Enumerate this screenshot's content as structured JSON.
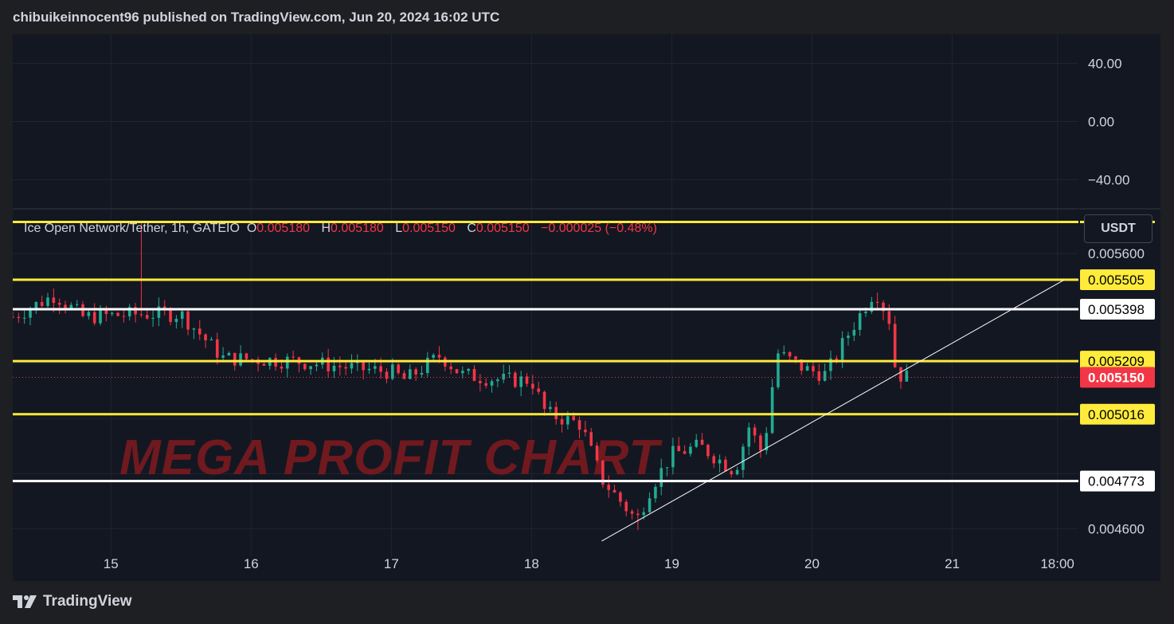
{
  "header": {
    "published": "chibuikeinnocent96 published on TradingView.com, Jun 20, 2024 16:02 UTC"
  },
  "legend": {
    "symbol": "Ice Open Network/Tether, 1h, GATEIO",
    "o_label": "O",
    "o_value": "0.005180",
    "h_label": "H",
    "h_value": "0.005180",
    "l_label": "L",
    "l_value": "0.005150",
    "c_label": "C",
    "c_value": "0.005150",
    "change": "−0.000025 (−0.48%)"
  },
  "unit_label": "USDT",
  "watermark": "MEGA PROFIT CHART",
  "footer": {
    "brand": "TradingView"
  },
  "colors": {
    "up": "#22ab94",
    "down": "#f23645",
    "yellow_level": "#ffeb3b",
    "white_level": "#ffffff",
    "background": "#131722"
  },
  "chart_data": [
    {
      "type": "line",
      "title": "",
      "ylim": [
        -60,
        60
      ],
      "y_ticks": [
        "40.00",
        "0.00",
        "−40.00"
      ],
      "y_tick_values": [
        40,
        0,
        -40
      ],
      "series": []
    },
    {
      "type": "candlestick",
      "title": "Ice Open Network/Tether, 1h, GATEIO",
      "x_ticks": [
        "15",
        "16",
        "17",
        "18",
        "19",
        "20",
        "21",
        "18:00"
      ],
      "x_tick_values": [
        15.0,
        16.0,
        17.0,
        18.0,
        19.0,
        20.0,
        21.0,
        21.75
      ],
      "xlim": [
        14.3,
        21.9
      ],
      "ylim": [
        0.00452,
        0.00576
      ],
      "y_ticks": [
        "0.005600",
        "0.004600"
      ],
      "y_tick_values": [
        0.0056,
        0.0046
      ],
      "grid": true,
      "current_price": {
        "label": "0.005150",
        "value": 0.00515
      },
      "levels": [
        {
          "label": "",
          "value": 0.005715,
          "color": "yellow"
        },
        {
          "label": "0.005505",
          "value": 0.005505,
          "color": "yellow"
        },
        {
          "label": "0.005398",
          "value": 0.005398,
          "color": "white"
        },
        {
          "label": "0.005209",
          "value": 0.005209,
          "color": "yellow"
        },
        {
          "label": "0.005016",
          "value": 0.005016,
          "color": "yellow"
        },
        {
          "label": "0.004773",
          "value": 0.004773,
          "color": "white"
        }
      ],
      "trendline": {
        "x": [
          18.5,
          21.8
        ],
        "y": [
          0.004555,
          0.005505
        ]
      },
      "candles_summary": {
        "waypoints": [
          {
            "x": 14.3,
            "close": 0.00537
          },
          {
            "x": 14.6,
            "close": 0.00545
          },
          {
            "x": 14.8,
            "close": 0.00537
          },
          {
            "x": 15.2,
            "close": 0.00538
          },
          {
            "x": 15.5,
            "close": 0.00538
          },
          {
            "x": 15.8,
            "close": 0.00522
          },
          {
            "x": 16.3,
            "close": 0.00521
          },
          {
            "x": 16.8,
            "close": 0.00518
          },
          {
            "x": 17.0,
            "close": 0.00517
          },
          {
            "x": 17.1,
            "close": 0.00514
          },
          {
            "x": 17.35,
            "close": 0.00523
          },
          {
            "x": 17.5,
            "close": 0.00516
          },
          {
            "x": 17.8,
            "close": 0.00514
          },
          {
            "x": 18.0,
            "close": 0.00514
          },
          {
            "x": 18.1,
            "close": 0.00502
          },
          {
            "x": 18.35,
            "close": 0.00498
          },
          {
            "x": 18.5,
            "close": 0.00478
          },
          {
            "x": 18.75,
            "close": 0.00463
          },
          {
            "x": 18.85,
            "close": 0.00475
          },
          {
            "x": 19.0,
            "close": 0.00487
          },
          {
            "x": 19.2,
            "close": 0.0049
          },
          {
            "x": 19.45,
            "close": 0.00481
          },
          {
            "x": 19.55,
            "close": 0.00497
          },
          {
            "x": 19.65,
            "close": 0.00487
          },
          {
            "x": 19.75,
            "close": 0.00524
          },
          {
            "x": 19.95,
            "close": 0.00518
          },
          {
            "x": 20.1,
            "close": 0.00516
          },
          {
            "x": 20.25,
            "close": 0.0053
          },
          {
            "x": 20.45,
            "close": 0.00547
          },
          {
            "x": 20.55,
            "close": 0.00536
          },
          {
            "x": 20.6,
            "close": 0.00516
          },
          {
            "x": 20.7,
            "close": 0.00515
          }
        ],
        "max_high": 0.005715,
        "min_low": 0.004595
      }
    }
  ]
}
